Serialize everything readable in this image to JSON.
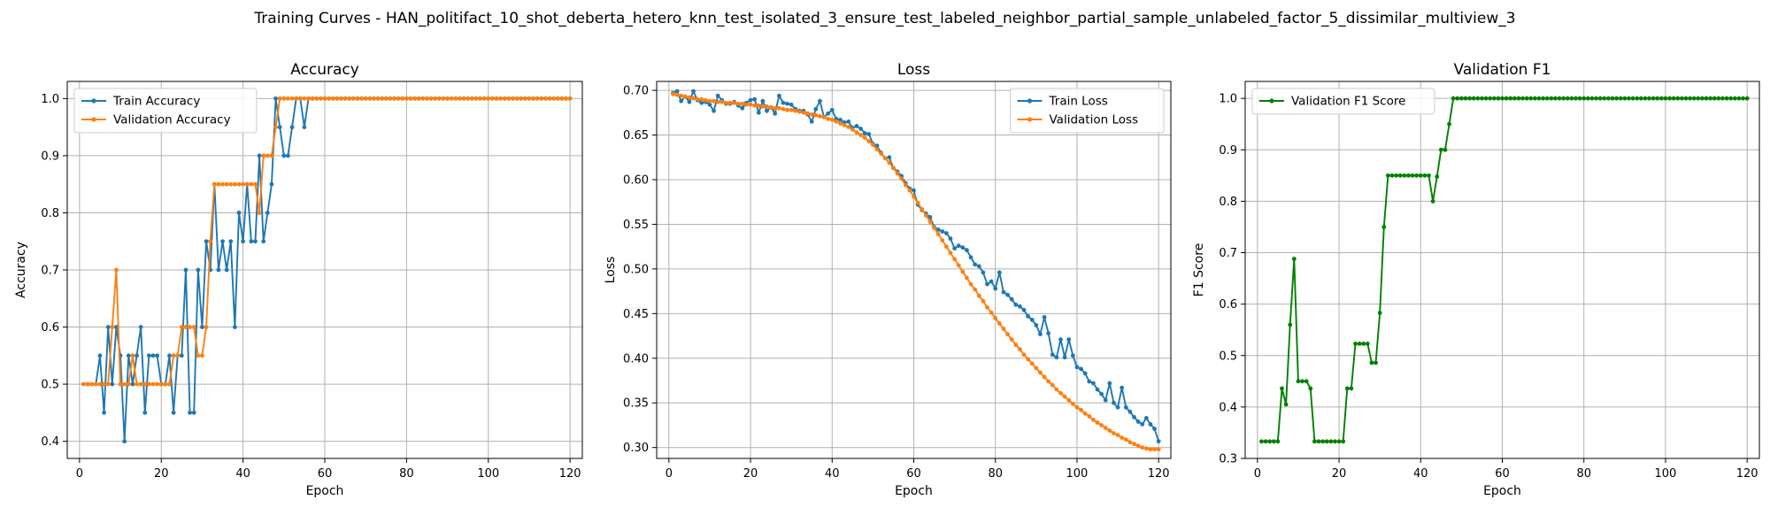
{
  "figure": {
    "suptitle": "Training Curves - HAN_politifact_10_shot_deberta_hetero_knn_test_isolated_3_ensure_test_labeled_neighbor_partial_sample_unlabeled_factor_5_dissimilar_multiview_3"
  },
  "chart_data": [
    {
      "type": "line",
      "title": "Accuracy",
      "xlabel": "Epoch",
      "ylabel": "Accuracy",
      "xlim": [
        -3,
        123
      ],
      "ylim": [
        0.37,
        1.03
      ],
      "xticks": [
        0,
        20,
        40,
        60,
        80,
        100,
        120
      ],
      "yticks": [
        0.4,
        0.5,
        0.6,
        0.7,
        0.8,
        0.9,
        1.0
      ],
      "ytick_labels": [
        "0.4",
        "0.5",
        "0.6",
        "0.7",
        "0.8",
        "0.9",
        "1.0"
      ],
      "grid": true,
      "legend_position": "top-left",
      "series": [
        {
          "name": "Train Accuracy",
          "color": "#1f77b4",
          "x_start": 1,
          "values": [
            0.5,
            0.5,
            0.5,
            0.5,
            0.55,
            0.45,
            0.6,
            0.5,
            0.6,
            0.55,
            0.4,
            0.55,
            0.5,
            0.55,
            0.6,
            0.45,
            0.55,
            0.55,
            0.55,
            0.5,
            0.5,
            0.55,
            0.45,
            0.55,
            0.55,
            0.7,
            0.45,
            0.45,
            0.7,
            0.6,
            0.75,
            0.7,
            0.85,
            0.7,
            0.75,
            0.7,
            0.75,
            0.6,
            0.8,
            0.75,
            0.85,
            0.75,
            0.75,
            0.9,
            0.75,
            0.8,
            0.85,
            1.0,
            0.95,
            0.9,
            0.9,
            0.95,
            1.0,
            1.0,
            0.95,
            1.0,
            1.0,
            1.0,
            1.0,
            1.0,
            1.0,
            1.0,
            1.0,
            1.0,
            1.0,
            1.0,
            1.0,
            1.0,
            1.0,
            1.0,
            1.0,
            1.0,
            1.0,
            1.0,
            1.0,
            1.0,
            1.0,
            1.0,
            1.0,
            1.0,
            1.0,
            1.0,
            1.0,
            1.0,
            1.0,
            1.0,
            1.0,
            1.0,
            1.0,
            1.0,
            1.0,
            1.0,
            1.0,
            1.0,
            1.0,
            1.0,
            1.0,
            1.0,
            1.0,
            1.0,
            1.0,
            1.0,
            1.0,
            1.0,
            1.0,
            1.0,
            1.0,
            1.0,
            1.0,
            1.0,
            1.0,
            1.0,
            1.0,
            1.0,
            1.0,
            1.0,
            1.0,
            1.0,
            1.0,
            1.0
          ]
        },
        {
          "name": "Validation Accuracy",
          "color": "#ff7f0e",
          "x_start": 1,
          "values": [
            0.5,
            0.5,
            0.5,
            0.5,
            0.5,
            0.5,
            0.5,
            0.6,
            0.7,
            0.5,
            0.5,
            0.5,
            0.55,
            0.5,
            0.5,
            0.5,
            0.5,
            0.5,
            0.5,
            0.5,
            0.5,
            0.5,
            0.55,
            0.55,
            0.6,
            0.6,
            0.6,
            0.6,
            0.55,
            0.55,
            0.6,
            0.75,
            0.85,
            0.85,
            0.85,
            0.85,
            0.85,
            0.85,
            0.85,
            0.85,
            0.85,
            0.85,
            0.85,
            0.8,
            0.9,
            0.9,
            0.9,
            0.95,
            1.0,
            1.0,
            1.0,
            1.0,
            1.0,
            1.0,
            1.0,
            1.0,
            1.0,
            1.0,
            1.0,
            1.0,
            1.0,
            1.0,
            1.0,
            1.0,
            1.0,
            1.0,
            1.0,
            1.0,
            1.0,
            1.0,
            1.0,
            1.0,
            1.0,
            1.0,
            1.0,
            1.0,
            1.0,
            1.0,
            1.0,
            1.0,
            1.0,
            1.0,
            1.0,
            1.0,
            1.0,
            1.0,
            1.0,
            1.0,
            1.0,
            1.0,
            1.0,
            1.0,
            1.0,
            1.0,
            1.0,
            1.0,
            1.0,
            1.0,
            1.0,
            1.0,
            1.0,
            1.0,
            1.0,
            1.0,
            1.0,
            1.0,
            1.0,
            1.0,
            1.0,
            1.0,
            1.0,
            1.0,
            1.0,
            1.0,
            1.0,
            1.0,
            1.0,
            1.0,
            1.0,
            1.0
          ]
        }
      ]
    },
    {
      "type": "line",
      "title": "Loss",
      "xlabel": "Epoch",
      "ylabel": "Loss",
      "xlim": [
        -3,
        123
      ],
      "ylim": [
        0.2878,
        0.71
      ],
      "xticks": [
        0,
        20,
        40,
        60,
        80,
        100,
        120
      ],
      "yticks": [
        0.3,
        0.35,
        0.4,
        0.45,
        0.5,
        0.55,
        0.6,
        0.65,
        0.7
      ],
      "ytick_labels": [
        "0.30",
        "0.35",
        "0.40",
        "0.45",
        "0.50",
        "0.55",
        "0.60",
        "0.65",
        "0.70"
      ],
      "grid": true,
      "legend_position": "top-right",
      "series": [
        {
          "name": "Train Loss",
          "color": "#1f77b4",
          "x_start": 1,
          "values": [
            0.697,
            0.699,
            0.688,
            0.693,
            0.687,
            0.699,
            0.689,
            0.686,
            0.687,
            0.684,
            0.677,
            0.694,
            0.689,
            0.685,
            0.685,
            0.687,
            0.683,
            0.68,
            0.686,
            0.689,
            0.69,
            0.675,
            0.688,
            0.677,
            0.681,
            0.674,
            0.694,
            0.686,
            0.685,
            0.684,
            0.679,
            0.677,
            0.677,
            0.673,
            0.665,
            0.679,
            0.688,
            0.67,
            0.674,
            0.678,
            0.668,
            0.667,
            0.664,
            0.665,
            0.658,
            0.66,
            0.657,
            0.652,
            0.651,
            0.64,
            0.638,
            0.63,
            0.624,
            0.625,
            0.613,
            0.609,
            0.604,
            0.596,
            0.59,
            0.588,
            0.572,
            0.566,
            0.562,
            0.558,
            0.547,
            0.544,
            0.542,
            0.54,
            0.534,
            0.523,
            0.526,
            0.524,
            0.521,
            0.513,
            0.505,
            0.503,
            0.496,
            0.483,
            0.486,
            0.478,
            0.496,
            0.474,
            0.471,
            0.466,
            0.46,
            0.458,
            0.454,
            0.447,
            0.443,
            0.437,
            0.427,
            0.446,
            0.428,
            0.404,
            0.401,
            0.421,
            0.401,
            0.421,
            0.403,
            0.39,
            0.388,
            0.383,
            0.374,
            0.372,
            0.365,
            0.36,
            0.353,
            0.372,
            0.35,
            0.345,
            0.367,
            0.345,
            0.34,
            0.334,
            0.329,
            0.326,
            0.333,
            0.326,
            0.321,
            0.307
          ]
        },
        {
          "name": "Validation Loss",
          "color": "#ff7f0e",
          "x_start": 1,
          "values": [
            0.696,
            0.695,
            0.694,
            0.693,
            0.692,
            0.691,
            0.69,
            0.69,
            0.689,
            0.688,
            0.688,
            0.687,
            0.687,
            0.686,
            0.686,
            0.686,
            0.685,
            0.685,
            0.684,
            0.684,
            0.683,
            0.683,
            0.682,
            0.682,
            0.681,
            0.68,
            0.68,
            0.679,
            0.678,
            0.678,
            0.677,
            0.676,
            0.675,
            0.674,
            0.673,
            0.672,
            0.671,
            0.67,
            0.668,
            0.667,
            0.665,
            0.663,
            0.661,
            0.659,
            0.656,
            0.653,
            0.65,
            0.647,
            0.643,
            0.639,
            0.634,
            0.629,
            0.624,
            0.619,
            0.613,
            0.607,
            0.601,
            0.594,
            0.588,
            0.581,
            0.574,
            0.567,
            0.56,
            0.553,
            0.546,
            0.539,
            0.532,
            0.525,
            0.518,
            0.511,
            0.504,
            0.497,
            0.49,
            0.483,
            0.477,
            0.47,
            0.464,
            0.457,
            0.451,
            0.445,
            0.439,
            0.433,
            0.427,
            0.421,
            0.415,
            0.41,
            0.404,
            0.399,
            0.394,
            0.389,
            0.384,
            0.379,
            0.374,
            0.37,
            0.365,
            0.361,
            0.357,
            0.353,
            0.349,
            0.345,
            0.342,
            0.338,
            0.335,
            0.331,
            0.328,
            0.325,
            0.322,
            0.319,
            0.316,
            0.314,
            0.311,
            0.309,
            0.306,
            0.304,
            0.302,
            0.3,
            0.299,
            0.298,
            0.298,
            0.298
          ]
        }
      ]
    },
    {
      "type": "line",
      "title": "Validation F1",
      "xlabel": "Epoch",
      "ylabel": "F1 Score",
      "xlim": [
        -3,
        123
      ],
      "ylim": [
        0.3,
        1.033
      ],
      "xticks": [
        0,
        20,
        40,
        60,
        80,
        100,
        120
      ],
      "yticks": [
        0.3,
        0.4,
        0.5,
        0.6,
        0.7,
        0.8,
        0.9,
        1.0
      ],
      "ytick_labels": [
        "0.3",
        "0.4",
        "0.5",
        "0.6",
        "0.7",
        "0.8",
        "0.9",
        "1.0"
      ],
      "grid": true,
      "legend_position": "top-left",
      "series": [
        {
          "name": "Validation F1 Score",
          "color": "#008000",
          "x_start": 1,
          "values": [
            0.333,
            0.333,
            0.333,
            0.333,
            0.333,
            0.436,
            0.405,
            0.56,
            0.688,
            0.45,
            0.45,
            0.45,
            0.436,
            0.333,
            0.333,
            0.333,
            0.333,
            0.333,
            0.333,
            0.333,
            0.333,
            0.436,
            0.436,
            0.523,
            0.523,
            0.523,
            0.523,
            0.486,
            0.486,
            0.583,
            0.75,
            0.85,
            0.85,
            0.85,
            0.85,
            0.85,
            0.85,
            0.85,
            0.85,
            0.85,
            0.85,
            0.85,
            0.8,
            0.848,
            0.9,
            0.9,
            0.95,
            1.0,
            1.0,
            1.0,
            1.0,
            1.0,
            1.0,
            1.0,
            1.0,
            1.0,
            1.0,
            1.0,
            1.0,
            1.0,
            1.0,
            1.0,
            1.0,
            1.0,
            1.0,
            1.0,
            1.0,
            1.0,
            1.0,
            1.0,
            1.0,
            1.0,
            1.0,
            1.0,
            1.0,
            1.0,
            1.0,
            1.0,
            1.0,
            1.0,
            1.0,
            1.0,
            1.0,
            1.0,
            1.0,
            1.0,
            1.0,
            1.0,
            1.0,
            1.0,
            1.0,
            1.0,
            1.0,
            1.0,
            1.0,
            1.0,
            1.0,
            1.0,
            1.0,
            1.0,
            1.0,
            1.0,
            1.0,
            1.0,
            1.0,
            1.0,
            1.0,
            1.0,
            1.0,
            1.0,
            1.0,
            1.0,
            1.0,
            1.0,
            1.0,
            1.0,
            1.0,
            1.0,
            1.0,
            1.0
          ]
        }
      ]
    }
  ]
}
